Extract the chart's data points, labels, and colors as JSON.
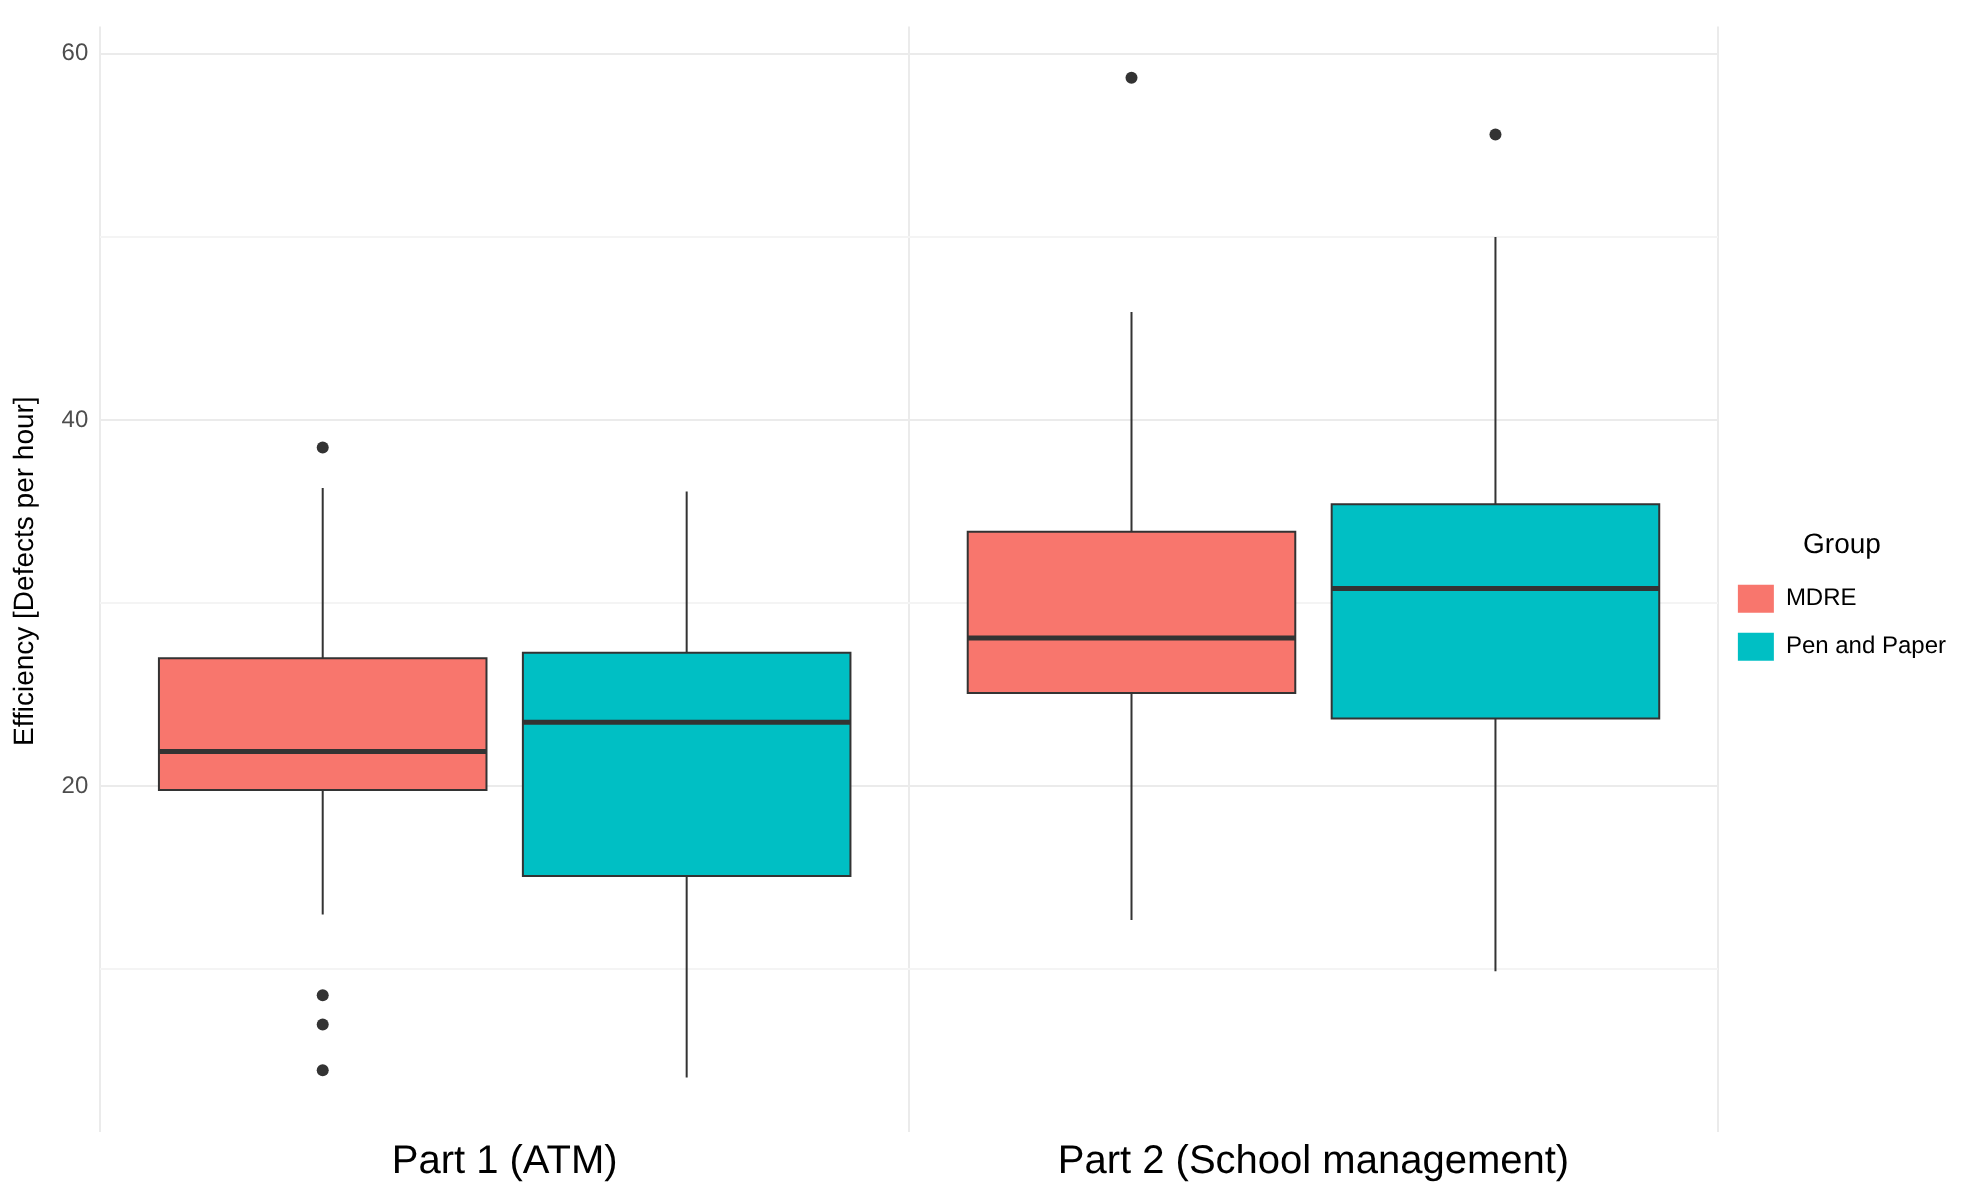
{
  "chart_data": {
    "type": "box",
    "ylabel": "Efficiency [Defects per hour]",
    "legend_title": "Group",
    "legend": "right",
    "grid": true,
    "categories": [
      "Part 1 (ATM)",
      "Part 2 (School management)"
    ],
    "ylim": [
      2,
      61.5
    ],
    "yticks": [
      {
        "value": 10,
        "label": null
      },
      20,
      {
        "value": 30,
        "label": null
      },
      40,
      {
        "value": 50,
        "label": null
      },
      60
    ],
    "series": [
      {
        "name": "MDRE",
        "color": "#f8766d",
        "boxes": [
          {
            "low": 13.0,
            "q1": 19.8,
            "median": 21.9,
            "q3": 27.0,
            "high": 36.3,
            "outliers": [
              38.5,
              8.6,
              7.0,
              4.5
            ]
          },
          {
            "low": 12.7,
            "q1": 25.1,
            "median": 28.1,
            "q3": 33.9,
            "high": 45.9,
            "outliers": [
              58.7
            ]
          }
        ]
      },
      {
        "name": "Pen and Paper",
        "color": "#00bfc4",
        "boxes": [
          {
            "low": 4.1,
            "q1": 15.1,
            "median": 23.5,
            "q3": 27.3,
            "high": 36.1
          },
          {
            "low": 9.9,
            "q1": 23.7,
            "median": 30.8,
            "q3": 35.4,
            "high": 50.0,
            "outliers": [
              55.6
            ]
          }
        ]
      }
    ]
  }
}
